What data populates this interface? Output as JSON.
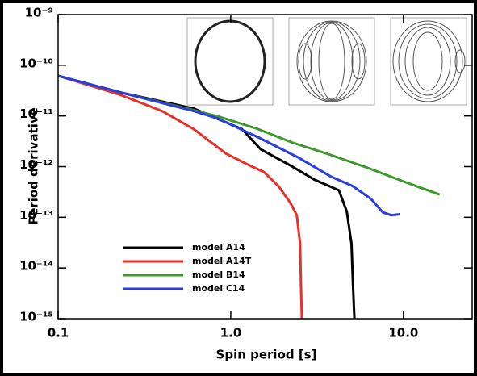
{
  "chart_data": {
    "type": "line",
    "xlabel": "Spin period [s]",
    "ylabel": "Period derivative",
    "xscale": "log",
    "yscale": "log",
    "xlim": [
      0.1,
      25
    ],
    "ylim": [
      1e-15,
      1e-09
    ],
    "xticks": [
      0.1,
      {
        "value": 1,
        "label": "1.0"
      },
      {
        "value": 10,
        "label": "10.0"
      }
    ],
    "yticks": [
      {
        "value": 1e-09,
        "label": "10⁻⁹"
      },
      {
        "value": 1e-10,
        "label": "10⁻¹⁰"
      },
      {
        "value": 1e-11,
        "label": "10⁻¹¹"
      },
      {
        "value": 1e-12,
        "label": "10⁻¹²"
      },
      {
        "value": 1e-13,
        "label": "10⁻¹³"
      },
      {
        "value": 1e-14,
        "label": "10⁻¹⁴"
      },
      {
        "value": 1e-15,
        "label": "10⁻¹⁵"
      }
    ],
    "legend": "lower left",
    "series": [
      {
        "name": "model A14",
        "color": "#000000",
        "x": [
          0.1,
          0.23,
          0.61,
          1.16,
          1.49,
          2.22,
          3.06,
          4.23,
          4.7,
          5.0,
          5.1,
          5.2
        ],
        "y": [
          6.2e-11,
          2.9e-11,
          1.4e-11,
          5.5e-12,
          2.2e-12,
          1.05e-12,
          5.5e-13,
          3.4e-13,
          1.3e-13,
          3e-14,
          4.8e-15,
          1e-15
        ]
      },
      {
        "name": "model A14T",
        "color": "#e8302a",
        "x": [
          0.1,
          0.23,
          0.4,
          0.61,
          0.94,
          1.29,
          1.56,
          1.89,
          2.22,
          2.41,
          2.52,
          2.55,
          2.58
        ],
        "y": [
          6.2e-11,
          2.6e-11,
          1.25e-11,
          5.5e-12,
          1.8e-12,
          1.05e-12,
          7.8e-13,
          4.1e-13,
          1.9e-13,
          1.1e-13,
          3e-14,
          4.8e-15,
          1e-15
        ]
      },
      {
        "name": "model B14",
        "color": "#3a9a2a",
        "x": [
          0.1,
          0.23,
          0.61,
          0.86,
          1.44,
          2.26,
          3.79,
          6.3,
          10,
          16.2
        ],
        "y": [
          6.2e-11,
          2.9e-11,
          1.3e-11,
          9.6e-12,
          5.5e-12,
          3e-12,
          1.7e-12,
          9.3e-13,
          5.1e-13,
          2.8e-13
        ]
      },
      {
        "name": "model C14",
        "color": "#2a3ee0",
        "x": [
          0.1,
          0.23,
          0.61,
          0.84,
          1.44,
          2.47,
          3.79,
          5.1,
          6.5,
          7.6,
          8.5,
          9.5
        ],
        "y": [
          6.2e-11,
          2.9e-11,
          1.25e-11,
          8.9e-12,
          3.8e-12,
          1.5e-12,
          6.4e-13,
          4.1e-13,
          2.3e-13,
          1.25e-13,
          1.1e-13,
          1.15e-13
        ]
      }
    ]
  }
}
